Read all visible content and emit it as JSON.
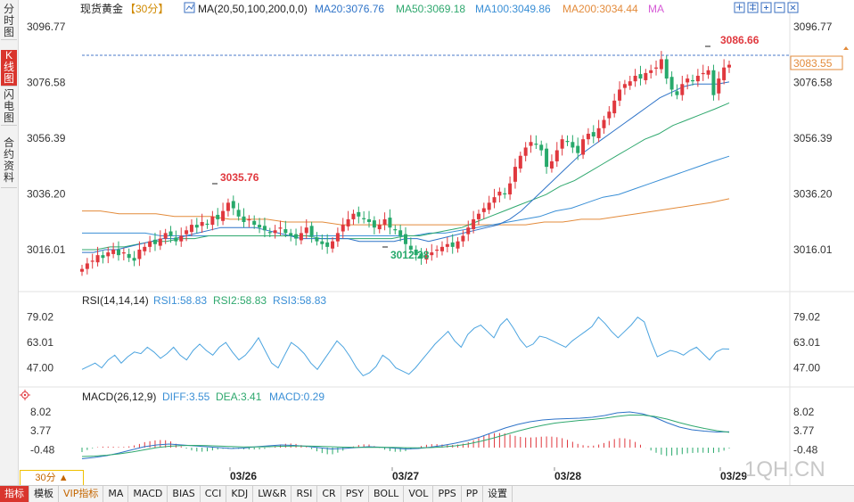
{
  "sidebar": {
    "tabs": [
      {
        "label": "分时图",
        "active": false
      },
      {
        "label": "K线图",
        "active": true
      },
      {
        "label": "闪电图",
        "active": false
      },
      {
        "label": "合约资料",
        "active": false
      }
    ]
  },
  "header": {
    "symbol": "现货黄金",
    "period": "【30分】",
    "ma_params": "MA(20,50,100,200,0,0)",
    "ma_items": [
      {
        "label": "MA20:3076.76",
        "color": "#2e73c8"
      },
      {
        "label": "MA50:3069.18",
        "color": "#2fa86e"
      },
      {
        "label": "MA100:3049.86",
        "color": "#3a8fd6"
      },
      {
        "label": "MA200:3034.44",
        "color": "#e38b3b"
      },
      {
        "label": "MA",
        "color": "#d65bd6"
      }
    ]
  },
  "toolbar_icons": [
    "expand-icon",
    "grid-icon",
    "zoom-in-icon",
    "zoom-out-icon",
    "close-icon"
  ],
  "price_axis": {
    "ticks": [
      "3096.77",
      "3076.58",
      "3056.39",
      "3036.20",
      "3016.01"
    ],
    "current": "3083.55"
  },
  "annotations": {
    "high": "3086.66",
    "mid_high": "3035.76",
    "low": "3012.28"
  },
  "rsi": {
    "title": "RSI(14,14,14)",
    "items": [
      "RSI1:58.83",
      "RSI2:58.83",
      "RSI3:58.83"
    ],
    "ticks": [
      "79.02",
      "63.01",
      "47.00"
    ]
  },
  "macd": {
    "title": "MACD(26,12,9)",
    "items": [
      "DIFF:3.55",
      "DEA:3.41",
      "MACD:0.29"
    ],
    "ticks": [
      "8.02",
      "3.77",
      "-0.48"
    ]
  },
  "time_axis": {
    "labels": [
      "03/26",
      "03/27",
      "03/28",
      "03/29"
    ]
  },
  "period_selector": "30分",
  "watermark": "1QH.CN",
  "bottom_tabs": [
    {
      "label": "指标",
      "active": true
    },
    {
      "label": "模板",
      "active": false
    },
    {
      "label": "VIP指标",
      "vip": true
    },
    {
      "label": "MA"
    },
    {
      "label": "MACD"
    },
    {
      "label": "BIAS"
    },
    {
      "label": "CCI"
    },
    {
      "label": "KDJ"
    },
    {
      "label": "LW&R"
    },
    {
      "label": "RSI"
    },
    {
      "label": "CR"
    },
    {
      "label": "PSY"
    },
    {
      "label": "BOLL"
    },
    {
      "label": "VOL"
    },
    {
      "label": "PPS"
    },
    {
      "label": "PP"
    },
    {
      "label": "设置"
    }
  ],
  "colors": {
    "up": "#e0383e",
    "down": "#27a96b",
    "ma20": "#2e73c8",
    "ma50": "#2fa86e",
    "ma100": "#3a8fd6",
    "ma200": "#e38b3b"
  },
  "chart_data": {
    "type": "candlestick",
    "price_ylim": [
      3005,
      3100
    ],
    "closes": [
      3009,
      3011,
      3012,
      3014,
      3013,
      3015,
      3016,
      3014,
      3015,
      3013,
      3012,
      3016,
      3017,
      3019,
      3018,
      3020,
      3022,
      3021,
      3019,
      3021,
      3023,
      3025,
      3024,
      3026,
      3025,
      3028,
      3027,
      3030,
      3033,
      3031,
      3028,
      3026,
      3027,
      3025,
      3024,
      3023,
      3022,
      3023,
      3024,
      3022,
      3021,
      3020,
      3022,
      3024,
      3021,
      3019,
      3018,
      3017,
      3019,
      3022,
      3025,
      3027,
      3029,
      3028,
      3027,
      3026,
      3024,
      3025,
      3027,
      3024,
      3023,
      3021,
      3018,
      3016,
      3014,
      3013,
      3014,
      3015,
      3016,
      3017,
      3018,
      3017,
      3019,
      3021,
      3024,
      3027,
      3029,
      3031,
      3033,
      3035,
      3037,
      3036,
      3040,
      3046,
      3050,
      3053,
      3055,
      3054,
      3052,
      3046,
      3048,
      3052,
      3056,
      3055,
      3053,
      3051,
      3056,
      3058,
      3057,
      3060,
      3063,
      3066,
      3070,
      3074,
      3076,
      3077,
      3079,
      3078,
      3080,
      3081,
      3082,
      3085,
      3078,
      3074,
      3072,
      3076,
      3078,
      3077,
      3079,
      3080,
      3081,
      3072,
      3078,
      3082,
      3083
    ],
    "ma20": [
      3015,
      3015,
      3016,
      3016,
      3017,
      3018,
      3019,
      3020,
      3020,
      3021,
      3022,
      3023,
      3024,
      3024,
      3024,
      3024,
      3023,
      3022,
      3021,
      3020,
      3020,
      3020,
      3020,
      3020,
      3019,
      3019,
      3019,
      3019,
      3020,
      3020,
      3019,
      3020,
      3021,
      3022,
      3023,
      3024,
      3025,
      3027,
      3030,
      3034,
      3038,
      3042,
      3046,
      3050,
      3053,
      3056,
      3059,
      3062,
      3065,
      3068,
      3071,
      3073,
      3075,
      3076,
      3076,
      3076,
      3076.76
    ],
    "ma50": [
      3016,
      3016,
      3017,
      3017,
      3018,
      3019,
      3019,
      3020,
      3020,
      3021,
      3021,
      3021,
      3021,
      3021,
      3021,
      3021,
      3021,
      3020,
      3020,
      3020,
      3020,
      3020,
      3020,
      3021,
      3021,
      3022,
      3023,
      3024,
      3026,
      3028,
      3030,
      3032,
      3034,
      3036,
      3039,
      3041,
      3044,
      3047,
      3050,
      3053,
      3056,
      3058,
      3061,
      3063,
      3065,
      3067,
      3069.18
    ],
    "ma100": [
      3022,
      3022,
      3022,
      3022,
      3022,
      3021,
      3021,
      3021,
      3021,
      3021,
      3021,
      3021,
      3021,
      3021,
      3021,
      3021,
      3021,
      3021,
      3021,
      3021,
      3021,
      3021,
      3022,
      3022,
      3023,
      3024,
      3025,
      3026,
      3027,
      3028,
      3030,
      3031,
      3033,
      3035,
      3036,
      3038,
      3040,
      3042,
      3044,
      3046,
      3048,
      3049.86
    ],
    "ma200": [
      3030,
      3030,
      3029,
      3029,
      3029,
      3028,
      3028,
      3028,
      3027,
      3027,
      3027,
      3026,
      3026,
      3026,
      3025,
      3025,
      3025,
      3025,
      3025,
      3025,
      3025,
      3025,
      3025,
      3025,
      3025,
      3026,
      3026,
      3027,
      3027,
      3028,
      3029,
      3030,
      3031,
      3032,
      3033,
      3034.44
    ],
    "rsi_ylim": [
      40,
      85
    ],
    "rsi": [
      46,
      48,
      50,
      47,
      52,
      55,
      50,
      54,
      57,
      56,
      60,
      57,
      53,
      56,
      60,
      55,
      52,
      58,
      62,
      58,
      55,
      60,
      63,
      57,
      52,
      55,
      60,
      66,
      58,
      50,
      47,
      55,
      63,
      60,
      56,
      50,
      46,
      52,
      58,
      64,
      60,
      54,
      47,
      42,
      44,
      48,
      55,
      52,
      47,
      45,
      43,
      47,
      52,
      57,
      62,
      66,
      70,
      64,
      60,
      68,
      72,
      74,
      70,
      66,
      74,
      78,
      72,
      65,
      60,
      62,
      67,
      66,
      64,
      62,
      60,
      64,
      67,
      70,
      73,
      79,
      75,
      70,
      66,
      70,
      74,
      79,
      76,
      64,
      54,
      56,
      58,
      57,
      55,
      58,
      60,
      56,
      52,
      57,
      59,
      58.83
    ],
    "macd_ylim": [
      -4,
      10
    ],
    "diff": [
      -2.5,
      -2.2,
      -1.8,
      -1.2,
      -0.5,
      0.2,
      0.6,
      0.8,
      0.6,
      0.4,
      0.2,
      0,
      -0.2,
      -0.1,
      0.2,
      0.4,
      0.6,
      0.5,
      0.3,
      0,
      -0.3,
      -0.2,
      0,
      0.2,
      0.1,
      -0.1,
      -0.3,
      -0.2,
      0.1,
      0.5,
      1,
      1.6,
      2.4,
      3.4,
      4.4,
      5.2,
      5.8,
      6.2,
      6.4,
      6.5,
      6.6,
      6.8,
      7.2,
      7.8,
      8,
      7.6,
      6.8,
      5.6,
      4.6,
      4,
      3.7,
      3.5,
      3.55
    ],
    "dea": [
      -2,
      -1.9,
      -1.7,
      -1.4,
      -1,
      -0.5,
      0,
      0.3,
      0.45,
      0.5,
      0.45,
      0.35,
      0.25,
      0.15,
      0.15,
      0.2,
      0.3,
      0.35,
      0.35,
      0.3,
      0.2,
      0.1,
      0.05,
      0.05,
      0.08,
      0.05,
      -0.02,
      -0.05,
      0,
      0.15,
      0.4,
      0.8,
      1.4,
      2.1,
      2.9,
      3.7,
      4.4,
      5,
      5.5,
      5.8,
      6.1,
      6.3,
      6.6,
      7,
      7.3,
      7.3,
      7,
      6.4,
      5.6,
      4.9,
      4.3,
      3.8,
      3.41
    ]
  }
}
